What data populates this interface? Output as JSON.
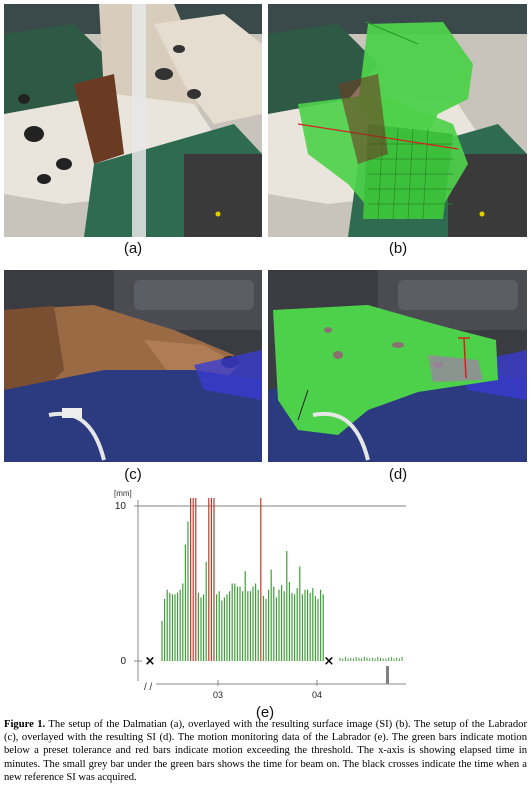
{
  "panels": [
    {
      "id": "a",
      "label": "(a)"
    },
    {
      "id": "b",
      "label": "(b)"
    },
    {
      "id": "c",
      "label": "(c)"
    },
    {
      "id": "d",
      "label": "(d)"
    },
    {
      "id": "e",
      "label": "(e)"
    }
  ],
  "colors": {
    "green_bar": "#3f9f3a",
    "red_bar": "#c0392b",
    "threshold_line": "#9a9a9a",
    "beam_bar": "#808080",
    "surface_green": "#4ed14a"
  },
  "chart_data": {
    "type": "bar",
    "unit_label": "[mm]",
    "y_ticks": [
      "0",
      "10"
    ],
    "x_ticks": [
      "03",
      "04"
    ],
    "x_break_symbol": "/ /",
    "ylim": [
      0,
      10.3
    ],
    "threshold": 10,
    "green_values": [
      2.6,
      4.0,
      4.6,
      4.4,
      4.3,
      4.3,
      4.4,
      4.6,
      5.0,
      7.5,
      9.0,
      8.1,
      6.7,
      5.0,
      4.4,
      4.1,
      4.3,
      6.4,
      5.9,
      4.5,
      5.0,
      4.3,
      4.5,
      3.9,
      4.1,
      4.3,
      4.5,
      5.0,
      5.0,
      4.8,
      4.8,
      4.5,
      5.8,
      4.5,
      4.5,
      4.8,
      5.0,
      4.6,
      5.0,
      4.2,
      4.0,
      4.6,
      5.9,
      4.8,
      4.1,
      4.6,
      4.9,
      4.5,
      7.1,
      5.1,
      4.4,
      4.3,
      4.7,
      6.1,
      4.3,
      4.6,
      4.6,
      4.4,
      4.7,
      4.2,
      4.0,
      4.6,
      4.3
    ],
    "red_positions": [
      11,
      12,
      13,
      18,
      19,
      20,
      38
    ],
    "post_values": [
      0.15,
      0.1,
      0.2,
      0.1,
      0.15,
      0.1,
      0.2,
      0.15,
      0.1,
      0.2,
      0.15,
      0.1,
      0.15,
      0.1,
      0.2,
      0.15,
      0.1,
      0.1,
      0.15,
      0.2,
      0.1,
      0.15,
      0.1,
      0.2
    ],
    "reference_markers": [
      "×",
      "×"
    ],
    "beam_on": true
  },
  "caption": {
    "lead": "Figure 1.",
    "text": " The setup of the Dalmatian (a), overlayed with the resulting surface image (SI) (b). The setup of the Labrador (c), overlayed with the resulting SI (d). The motion monitoring data of the Labrador (e). The green bars indicate motion below a preset tolerance and red bars indicate motion exceeding the threshold. The x-axis is showing elapsed time in minutes. The small grey bar under the green bars shows the time for beam on. The black crosses indicate the time when a new reference SI was acquired."
  }
}
